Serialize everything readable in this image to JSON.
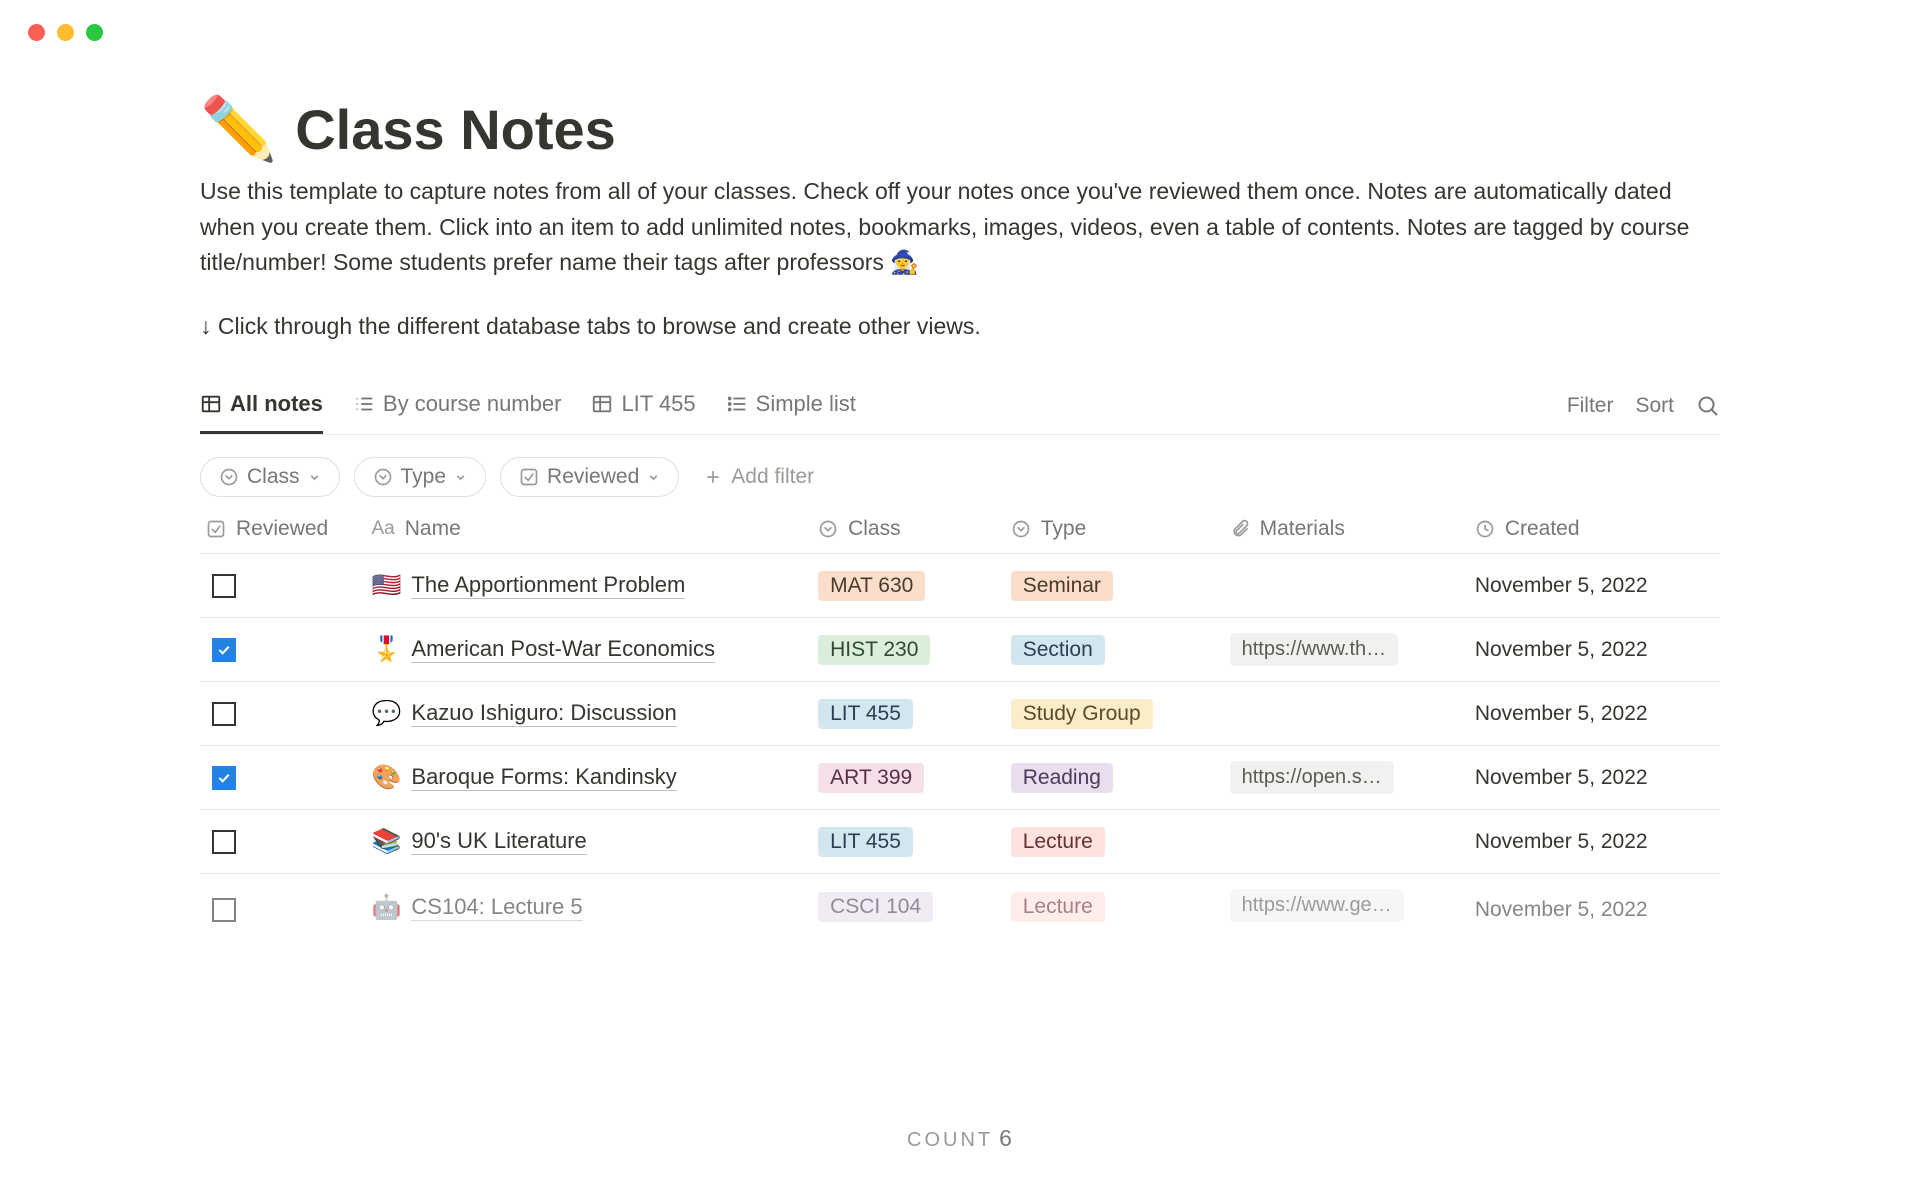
{
  "window": {
    "traffic_light_colors": {
      "red": "#ff5f57",
      "yellow": "#febc2e",
      "green": "#28c840"
    }
  },
  "page": {
    "icon": "✏️",
    "title": "Class Notes",
    "description": "Use this template to capture notes from all of your classes. Check off your notes once you've reviewed them once. Notes are automatically dated when you create them. Click into an item to add unlimited notes, bookmarks, images, videos, even a table of contents. Notes are tagged by course title/number!  Some students prefer name their tags after professors 🧙‍♀️",
    "hint": "↓ Click through the different database tabs to browse and create other views."
  },
  "tabs": {
    "items": [
      {
        "label": "All notes",
        "icon": "table",
        "active": true
      },
      {
        "label": "By course number",
        "icon": "list-numbered",
        "active": false
      },
      {
        "label": "LIT 455",
        "icon": "table",
        "active": false
      },
      {
        "label": "Simple list",
        "icon": "list",
        "active": false
      }
    ],
    "actions": {
      "filter": "Filter",
      "sort": "Sort",
      "search_icon": "search"
    }
  },
  "filters": {
    "pills": [
      {
        "icon": "select",
        "label": "Class"
      },
      {
        "icon": "select",
        "label": "Type"
      },
      {
        "icon": "checkbox",
        "label": "Reviewed"
      }
    ],
    "add_label": "Add filter"
  },
  "columns": {
    "reviewed": "Reviewed",
    "name": "Name",
    "class": "Class",
    "type": "Type",
    "materials": "Materials",
    "created": "Created"
  },
  "tag_colors": {
    "MAT 630": {
      "bg": "#fadec9",
      "fg": "#4a3a2c"
    },
    "HIST 230": {
      "bg": "#dbeddb",
      "fg": "#2e4b2e"
    },
    "LIT 455": {
      "bg": "#d3e5ef",
      "fg": "#2a3f52"
    },
    "ART 399": {
      "bg": "#f5e0e9",
      "fg": "#5a2f45"
    },
    "CSCI 104": {
      "bg": "#e8deee",
      "fg": "#4b3a5a"
    },
    "Seminar": {
      "bg": "#fadec9",
      "fg": "#4a3a2c"
    },
    "Section": {
      "bg": "#d3e5ef",
      "fg": "#2a3f52"
    },
    "Study Group": {
      "bg": "#fdecc8",
      "fg": "#5a4a2a"
    },
    "Reading": {
      "bg": "#e8deee",
      "fg": "#4b3a5a"
    },
    "Lecture": {
      "bg": "#ffe2dd",
      "fg": "#6b2f2f"
    }
  },
  "rows": [
    {
      "reviewed": false,
      "emoji": "🇺🇸",
      "title": "The Apportionment Problem",
      "class": "MAT 630",
      "type": "Seminar",
      "material": "",
      "created": "November 5, 2022"
    },
    {
      "reviewed": true,
      "emoji": "🎖️",
      "title": "American Post-War Economics",
      "class": "HIST 230",
      "type": "Section",
      "material": "https://www.th…",
      "created": "November 5, 2022"
    },
    {
      "reviewed": false,
      "emoji": "💬",
      "title": "Kazuo Ishiguro: Discussion",
      "class": "LIT 455",
      "type": "Study Group",
      "material": "",
      "created": "November 5, 2022"
    },
    {
      "reviewed": true,
      "emoji": "🎨",
      "title": "Baroque Forms: Kandinsky",
      "class": "ART 399",
      "type": "Reading",
      "material": "https://open.s…",
      "created": "November 5, 2022"
    },
    {
      "reviewed": false,
      "emoji": "📚",
      "title": "90's UK Literature",
      "class": "LIT 455",
      "type": "Lecture",
      "material": "",
      "created": "November 5, 2022"
    },
    {
      "reviewed": false,
      "emoji": "🤖",
      "title": "CS104: Lecture 5",
      "class": "CSCI 104",
      "type": "Lecture",
      "material": "https://www.ge…",
      "created": "November 5, 2022"
    }
  ],
  "footer": {
    "count_label": "COUNT",
    "count_value": "6"
  }
}
